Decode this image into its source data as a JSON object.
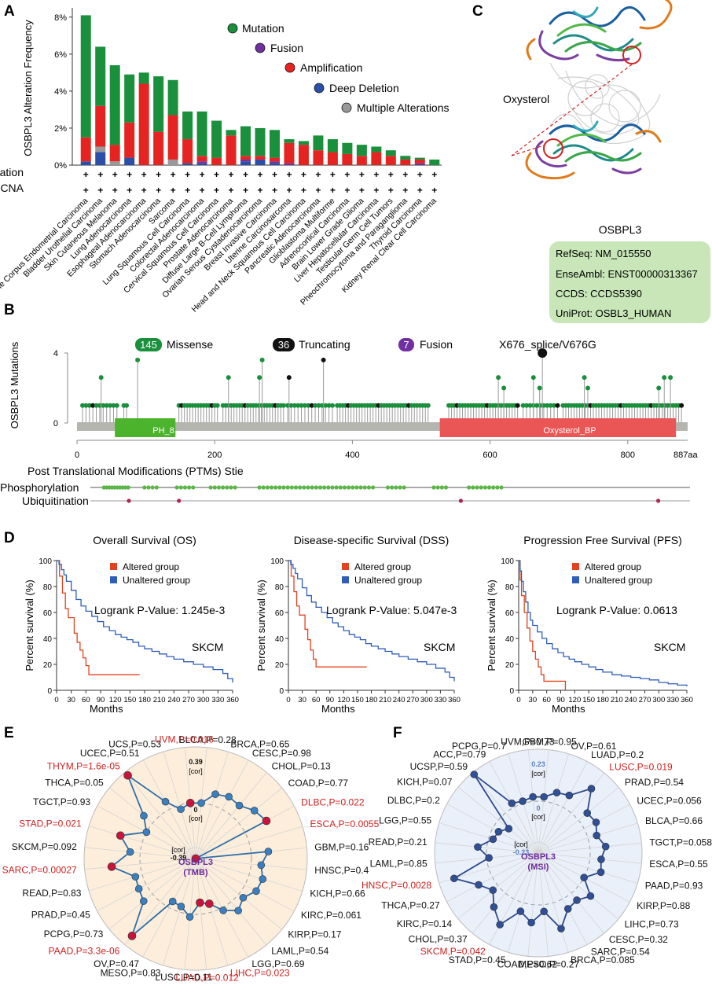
{
  "panels": {
    "A": "A",
    "B": "B",
    "C": "C",
    "D": "D",
    "E": "E",
    "F": "F"
  },
  "panelA": {
    "ylabel": "OSBPL3 Alteration Frequency",
    "row_labels": [
      "Mutation",
      "CNA"
    ],
    "legend": [
      "Mutation",
      "Fusion",
      "Amplification",
      "Deep Deletion",
      "Multiple Alterations"
    ],
    "colors": {
      "mutation": "#1a8f3c",
      "fusion": "#7030a0",
      "amplification": "#e52421",
      "deep_deletion": "#2b4fa8",
      "multiple": "#999999"
    }
  },
  "chart_data": [
    {
      "type": "bar",
      "title": "",
      "ylabel": "OSBPL3 Alteration Frequency",
      "ylim": [
        0,
        8.5
      ],
      "yticks": [
        "0%",
        "2%",
        "4%",
        "6%",
        "8%"
      ],
      "ytick_values": [
        0,
        2,
        4,
        6,
        8
      ],
      "categories": [
        "Uterine Corpus Endometrial Carcinoma",
        "Bladder Urothelial Carcinoma",
        "Skin Cutaneous Melanoma",
        "Lung Adenocarcinoma",
        "Esophageal Adenocarcinoma",
        "Stomach Adenocarcinoma",
        "Sarcoma",
        "Lung Squamous Cell Carcinoma",
        "Colorectal Adenocarcinoma",
        "Cervical Squamous Cell Carcinoma",
        "Prostate Adenocarcinoma",
        "Diffuse Large B-Cell Lymphoma",
        "Ovarian Serous Cystadenocarcinoma",
        "Breast Invasive Carcinoma",
        "Uterine Carcinosarcoma",
        "Head and Neck Squamous Cell Carcinoma",
        "Pancreatic Adenocarcinoma",
        "Glioblastoma Multiforme",
        "Adrenocortical Carcinoma",
        "Brain Lower Grade Glioma",
        "Liver Hepatocellular Carcinoma",
        "Testicular Germ Cell Tumors",
        "Pheochromocytoma and Paraganglioma",
        "Thyroid Carcinoma",
        "Kidney Renal Clear Cell Carcinoma"
      ],
      "series": [
        {
          "name": "Deep Deletion",
          "values": [
            0.2,
            0.7,
            0.0,
            0.4,
            0.0,
            0.0,
            0.0,
            0.1,
            0.1,
            0.0,
            0.0,
            0.2,
            0.3,
            0.1,
            0.0,
            0.0,
            0.0,
            0.0,
            0.0,
            0.0,
            0.0,
            0.0,
            0.0,
            0.0,
            0.0
          ]
        },
        {
          "name": "Multiple Alterations",
          "values": [
            0.0,
            0.3,
            0.2,
            0.0,
            0.0,
            0.0,
            0.3,
            0.0,
            0.0,
            0.0,
            0.0,
            0.0,
            0.0,
            0.0,
            0.0,
            0.0,
            0.0,
            0.0,
            0.0,
            0.0,
            0.0,
            0.0,
            0.0,
            0.0,
            0.0
          ]
        },
        {
          "name": "Fusion",
          "values": [
            0.0,
            0.0,
            0.0,
            0.0,
            0.0,
            0.0,
            0.0,
            0.0,
            0.1,
            0.0,
            0.0,
            0.1,
            0.0,
            0.1,
            0.1,
            0.0,
            0.0,
            0.0,
            0.0,
            0.0,
            0.0,
            0.0,
            0.0,
            0.1,
            0.0
          ]
        },
        {
          "name": "Amplification",
          "values": [
            1.3,
            2.2,
            0.9,
            1.9,
            4.4,
            1.8,
            2.4,
            1.3,
            0.3,
            0.4,
            1.6,
            0.2,
            0.2,
            0.2,
            1.1,
            1.1,
            0.8,
            0.7,
            0.6,
            0.5,
            0.7,
            0.5,
            0.3,
            0.2,
            0.0
          ]
        },
        {
          "name": "Mutation",
          "values": [
            6.6,
            3.2,
            4.3,
            2.6,
            0.6,
            3.0,
            1.9,
            1.5,
            2.4,
            2.0,
            0.3,
            1.6,
            1.5,
            1.5,
            0.2,
            0.2,
            0.8,
            0.7,
            0.6,
            0.6,
            0.3,
            0.3,
            0.2,
            0.1,
            0.3
          ]
        }
      ]
    },
    {
      "type": "line",
      "panel": "B",
      "ylabel": "OSBPL3 Mutations",
      "xticks": [
        "0",
        "200",
        "400",
        "600",
        "800"
      ],
      "xtick_values": [
        0,
        200,
        400,
        600,
        800
      ],
      "x_end_label": "887aa",
      "yticks": [
        "0",
        "4"
      ],
      "legend": [
        {
          "count": "145",
          "label": "Missense"
        },
        {
          "count": "36",
          "label": "Truncating"
        },
        {
          "count": "7",
          "label": "Fusion"
        }
      ],
      "annotation": "X676_splice/V676G",
      "domains": [
        {
          "name": "PH_8",
          "start": 55,
          "end": 143
        },
        {
          "name": "Oxysterol_BP",
          "start": 527,
          "end": 870
        }
      ],
      "lollipops": [
        {
          "pos": 676,
          "height": 4.0,
          "kind": "truncating",
          "big": true
        },
        {
          "pos": 88,
          "height": 3.6,
          "kind": "missense"
        },
        {
          "pos": 269,
          "height": 3.6,
          "kind": "missense"
        },
        {
          "pos": 358,
          "height": 3.6,
          "kind": "truncating"
        },
        {
          "pos": 35,
          "height": 2.6,
          "kind": "missense"
        },
        {
          "pos": 220,
          "height": 2.6,
          "kind": "missense"
        },
        {
          "pos": 265,
          "height": 2.6,
          "kind": "missense"
        },
        {
          "pos": 308,
          "height": 2.6,
          "kind": "truncating"
        },
        {
          "pos": 612,
          "height": 2.6,
          "kind": "missense"
        },
        {
          "pos": 663,
          "height": 2.6,
          "kind": "missense"
        },
        {
          "pos": 737,
          "height": 2.6,
          "kind": "missense"
        },
        {
          "pos": 853,
          "height": 2.6,
          "kind": "missense"
        },
        {
          "pos": 862,
          "height": 2.6,
          "kind": "missense"
        },
        {
          "pos": 620,
          "height": 2.0,
          "kind": "missense"
        },
        {
          "pos": 672,
          "height": 2.0,
          "kind": "missense"
        },
        {
          "pos": 742,
          "height": 2.0,
          "kind": "missense"
        },
        {
          "pos": 845,
          "height": 2.0,
          "kind": "missense"
        }
      ],
      "ptm_title": "Post Translational Modifications (PTMs) Stie",
      "ptm_rows": [
        {
          "label": "Phosphorylation",
          "positions": [
            20,
            24,
            28,
            32,
            36,
            40,
            44,
            48,
            52,
            56,
            80,
            86,
            92,
            98,
            128,
            134,
            140,
            146,
            152,
            178,
            184,
            190,
            196,
            202,
            208,
            214,
            250,
            256,
            262,
            268,
            274,
            280,
            286,
            292,
            298,
            304,
            310,
            316,
            322,
            328,
            334,
            340,
            346,
            352,
            358,
            364,
            370,
            376,
            382,
            388,
            394,
            400,
            406,
            412,
            418,
            440,
            446,
            452,
            458,
            464,
            508,
            514,
            520,
            526,
            560,
            566,
            572,
            578,
            584,
            590,
            596,
            602,
            608
          ]
        },
        {
          "label": "Ubiquitination",
          "positions": [
            57,
            131,
            548,
            840
          ]
        }
      ]
    },
    {
      "type": "line",
      "panel": "D",
      "title": "Overall Survival (OS)",
      "xlabel": "Months",
      "ylabel": "Percent survival (%)",
      "xlim": [
        0,
        360
      ],
      "ylim": [
        0,
        100
      ],
      "xticks": [
        "0",
        "30",
        "60",
        "90",
        "120",
        "150",
        "180",
        "210",
        "240",
        "270",
        "300",
        "330",
        "360"
      ],
      "yticks": [
        "0",
        "20",
        "40",
        "60",
        "80",
        "100"
      ],
      "annotation": "Logrank P-Value: 1.245e-3",
      "cohort": "SKCM",
      "series": [
        {
          "name": "Altered group",
          "x": [
            0,
            6,
            12,
            18,
            24,
            36,
            42,
            48,
            54,
            60,
            66,
            170
          ],
          "y": [
            100,
            88,
            75,
            63,
            56,
            44,
            37,
            31,
            25,
            19,
            12,
            12
          ]
        },
        {
          "name": "Unaltered group",
          "x": [
            0,
            5,
            10,
            15,
            20,
            30,
            40,
            50,
            60,
            72,
            84,
            96,
            108,
            120,
            132,
            144,
            156,
            168,
            180,
            195,
            210,
            225,
            240,
            260,
            280,
            300,
            320,
            340,
            350,
            360
          ],
          "y": [
            100,
            97,
            93,
            89,
            84,
            77,
            70,
            65,
            61,
            57,
            53,
            49,
            46,
            43,
            41,
            39,
            37,
            34,
            32,
            30,
            28,
            26,
            24,
            22,
            20,
            18,
            16,
            13,
            9,
            6
          ]
        }
      ]
    },
    {
      "type": "line",
      "panel": "D",
      "title": "Disease-specific Survival (DSS)",
      "xlabel": "Months",
      "ylabel": "Percent survival (%)",
      "xlim": [
        0,
        360
      ],
      "ylim": [
        0,
        100
      ],
      "xticks": [
        "0",
        "30",
        "60",
        "90",
        "120",
        "150",
        "180",
        "210",
        "240",
        "270",
        "300",
        "330",
        "360"
      ],
      "yticks": [
        "0",
        "20",
        "40",
        "60",
        "80",
        "100"
      ],
      "annotation": "Logrank P-Value: 5.047e-3",
      "cohort": "SKCM",
      "series": [
        {
          "name": "Altered group",
          "x": [
            0,
            6,
            12,
            18,
            24,
            36,
            42,
            48,
            54,
            60,
            170
          ],
          "y": [
            100,
            88,
            76,
            65,
            58,
            47,
            39,
            31,
            24,
            18,
            18
          ]
        },
        {
          "name": "Unaltered group",
          "x": [
            0,
            5,
            10,
            15,
            20,
            30,
            40,
            50,
            60,
            72,
            84,
            96,
            108,
            120,
            132,
            144,
            156,
            168,
            180,
            195,
            210,
            225,
            240,
            260,
            280,
            300,
            320,
            340,
            350,
            360
          ],
          "y": [
            100,
            97,
            94,
            90,
            86,
            79,
            73,
            68,
            64,
            60,
            56,
            52,
            49,
            46,
            43,
            41,
            39,
            36,
            34,
            32,
            30,
            28,
            26,
            24,
            22,
            20,
            17,
            14,
            10,
            7
          ]
        }
      ]
    },
    {
      "type": "line",
      "panel": "D",
      "title": "Progression Free Survival (PFS)",
      "xlabel": "Months",
      "ylabel": "Percent survival (%)",
      "xlim": [
        0,
        360
      ],
      "ylim": [
        0,
        100
      ],
      "xticks": [
        "0",
        "30",
        "60",
        "90",
        "120",
        "150",
        "180",
        "210",
        "240",
        "270",
        "300",
        "330",
        "360"
      ],
      "yticks": [
        "0",
        "20",
        "40",
        "60",
        "80",
        "100"
      ],
      "annotation": "Logrank P-Value: 0.0613",
      "cohort": "SKCM",
      "series": [
        {
          "name": "Altered group",
          "x": [
            0,
            3,
            6,
            12,
            18,
            24,
            30,
            36,
            42,
            48,
            54,
            60,
            100
          ],
          "y": [
            100,
            85,
            73,
            60,
            48,
            38,
            30,
            24,
            18,
            12,
            7,
            7,
            0
          ]
        },
        {
          "name": "Unaltered group",
          "x": [
            0,
            3,
            6,
            10,
            15,
            20,
            25,
            30,
            40,
            50,
            60,
            72,
            84,
            96,
            108,
            120,
            135,
            150,
            165,
            180,
            200,
            220,
            240,
            260,
            280,
            300,
            320,
            340,
            360
          ],
          "y": [
            100,
            92,
            84,
            76,
            68,
            60,
            54,
            50,
            45,
            40,
            36,
            32,
            29,
            26,
            24,
            22,
            20,
            18,
            16,
            14,
            12,
            11,
            10,
            9,
            8,
            6,
            5,
            4,
            3
          ]
        }
      ]
    },
    {
      "type": "line",
      "panel": "E",
      "subtype": "radar",
      "center_label": [
        "OSBPL3",
        "(TMB)"
      ],
      "rings": [
        "0.39",
        "0",
        "-0.39"
      ],
      "ring_unit": "[cor]",
      "labels": [
        "BLCA,P=0.28",
        "BRCA,P=0.65",
        "CESC,P=0.98",
        "CHOL,P=0.13",
        "COAD,P=0.77",
        "DLBC,P=0.022",
        "ESCA,P=0.0055",
        "GBM,P=0.16",
        "HNSC,P=0.4",
        "KICH,P=0.66",
        "KIRC,P=0.061",
        "KIRP,P=0.17",
        "LAML,P=0.54",
        "LGG,P=0.69",
        "LIHC,P=0.023",
        "LUAD,P=0.012",
        "LUSC,P=0.11",
        "MESO,P=0.83",
        "OV,P=0.47",
        "PAAD,P=3.3e-06",
        "PCPG,P=0.73",
        "PRAD,P=0.45",
        "READ,P=0.83",
        "SARC,P=0.00027",
        "SKCM,P=0.092",
        "STAD,P=0.021",
        "TGCT,P=0.93",
        "THCA,P=0.05",
        "THYM,P=1.6e-05",
        "UCEC,P=0.51",
        "UCS,P=0.53",
        "UVM,P=0.016"
      ],
      "significant": [
        5,
        6,
        14,
        15,
        19,
        23,
        25,
        28,
        31
      ],
      "values": [
        0.0,
        0.08,
        0.1,
        0.09,
        0.14,
        0.17,
        -0.39,
        0.12,
        0.07,
        0.1,
        0.09,
        0.04,
        0.08,
        0.02,
        -0.06,
        -0.08,
        0.02,
        -0.04,
        -0.05,
        0.31,
        0.08,
        0.06,
        0.05,
        0.2,
        0.07,
        0.16,
        0.0,
        0.08,
        0.36,
        0.06,
        -0.03,
        0.0
      ]
    },
    {
      "type": "line",
      "panel": "F",
      "subtype": "radar",
      "center_label": [
        "OSBPL3",
        "(MSI)"
      ],
      "rings": [
        "0.23",
        "0",
        "-0.23"
      ],
      "ring_unit": "[cor]",
      "labels": [
        "GBM,P=0.95",
        "OV,P=0.61",
        "LUAD,P=0.2",
        "LUSC,P=0.019",
        "PRAD,P=0.54",
        "UCEC,P=0.056",
        "BLCA,P=0.66",
        "TGCT,P=0.058",
        "ESCA,P=0.55",
        "PAAD,P=0.93",
        "KIRP,P=0.88",
        "LIHC,P=0.73",
        "CESC,P=0.32",
        "SARC,P=0.54",
        "BRCA,P=0.085",
        "MESO,P=0.27",
        "COAD,P=0.62",
        "STAD,P=0.45",
        "SKCM,P=0.042",
        "CHOL,P=0.37",
        "KIRC,P=0.14",
        "THCA,P=0.27",
        "HNSC,P=0.0028",
        "LAML,P=0.85",
        "READ,P=0.21",
        "LGG,P=0.55",
        "DLBC,P=0.2",
        "KICH,P=0.07",
        "UCSP,P=0.59",
        "ACC,P=0.79",
        "PCPG,P=0.7",
        "UVM,P=0.73"
      ],
      "significant": [
        3,
        18,
        22
      ],
      "values": [
        0.02,
        0.05,
        0.06,
        0.14,
        0.05,
        0.06,
        0.04,
        0.07,
        0.05,
        0.06,
        0.0,
        0.07,
        0.04,
        0.05,
        0.12,
        0.03,
        0.08,
        0.04,
        0.13,
        0.08,
        0.03,
        0.07,
        0.16,
        -0.01,
        0.04,
        -0.02,
        -0.03,
        -0.06,
        0.22,
        0.02,
        0.01,
        0.02
      ]
    }
  ],
  "panelB": {
    "ylabel": "OSBPL3 Mutations",
    "counts": {
      "missense": "145",
      "truncating": "36",
      "fusion": "7"
    },
    "labels": {
      "missense": "Missense",
      "truncating": "Truncating",
      "fusion": "Fusion"
    },
    "annotation": "X676_splice/V676G",
    "domain1": "PH_8",
    "domain2": "Oxysterol_BP",
    "ptm_title": "Post Translational Modifications (PTMs) Stie",
    "ptm1": "Phosphorylation",
    "ptm2": "Ubiquitination",
    "end_label": "887aa"
  },
  "panelC": {
    "ligand_label": "Oxysterol",
    "protein_label": "OSBPL3",
    "info": [
      {
        "key": "RefSeq:",
        "value": "NM_015550"
      },
      {
        "key": "EnseAmbl:",
        "value": "ENST00000313367"
      },
      {
        "key": "CCDS:",
        "value": "CCDS5390"
      },
      {
        "key": "UniProt:",
        "value": "OSBL3_HUMAN"
      }
    ]
  },
  "panelD": {
    "legend_altered": "Altered group",
    "legend_unaltered": "Unaltered group",
    "colors": {
      "altered": "#e2421d",
      "unaltered": "#2f5db8"
    }
  },
  "panelE": {
    "center1": "OSBPL3",
    "center2": "(TMB)"
  },
  "panelF": {
    "center1": "OSBPL3",
    "center2": "(MSI)"
  }
}
